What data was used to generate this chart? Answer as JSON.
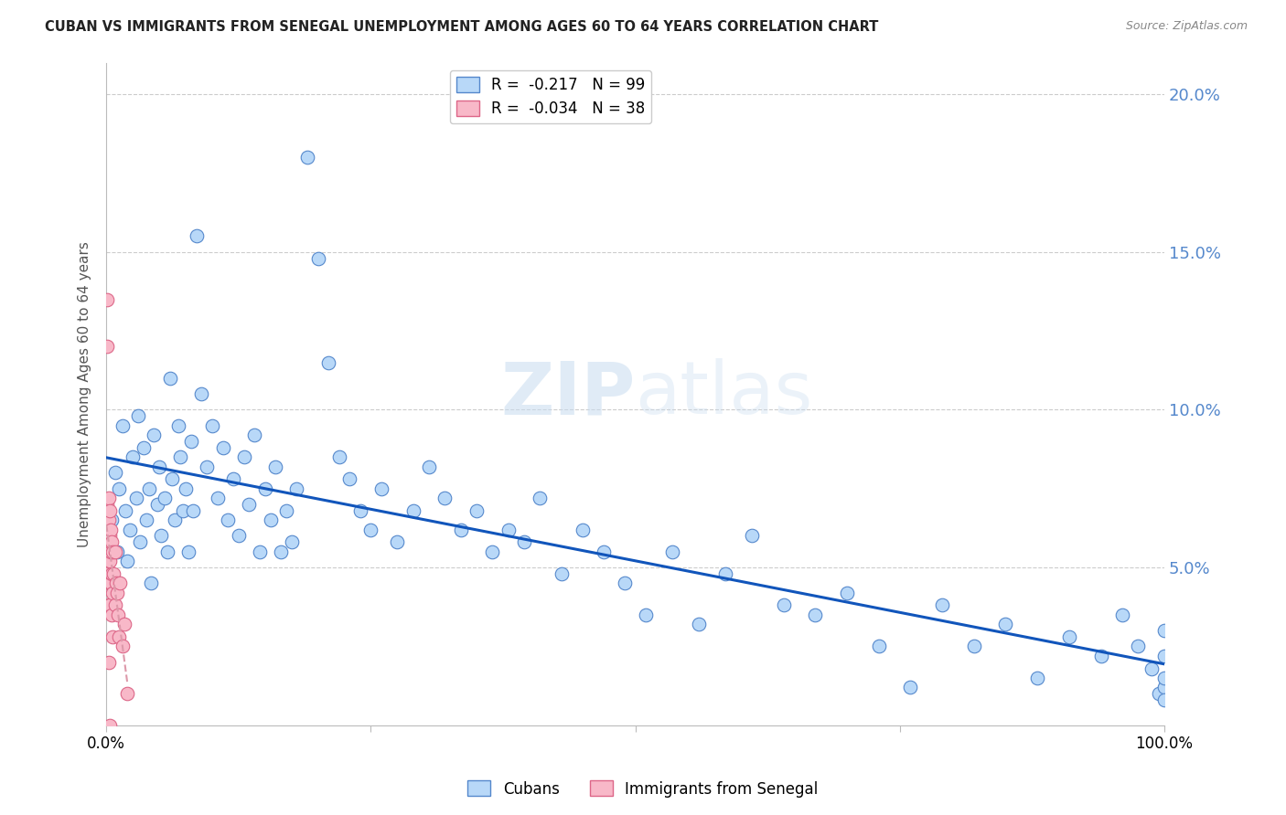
{
  "title": "CUBAN VS IMMIGRANTS FROM SENEGAL UNEMPLOYMENT AMONG AGES 60 TO 64 YEARS CORRELATION CHART",
  "source": "Source: ZipAtlas.com",
  "ylabel": "Unemployment Among Ages 60 to 64 years",
  "xlim": [
    0,
    1.0
  ],
  "ylim": [
    0,
    0.21
  ],
  "yticks": [
    0.05,
    0.1,
    0.15,
    0.2
  ],
  "ytick_labels": [
    "5.0%",
    "10.0%",
    "15.0%",
    "20.0%"
  ],
  "legend_entries": [
    {
      "label": "R =  -0.217   N = 99",
      "color": "#a8c8f0"
    },
    {
      "label": "R =  -0.034   N = 38",
      "color": "#f0a8b8"
    }
  ],
  "cubans_x": [
    0.005,
    0.008,
    0.01,
    0.012,
    0.015,
    0.018,
    0.02,
    0.022,
    0.025,
    0.028,
    0.03,
    0.032,
    0.035,
    0.038,
    0.04,
    0.042,
    0.045,
    0.048,
    0.05,
    0.052,
    0.055,
    0.058,
    0.06,
    0.062,
    0.065,
    0.068,
    0.07,
    0.072,
    0.075,
    0.078,
    0.08,
    0.082,
    0.085,
    0.09,
    0.095,
    0.1,
    0.105,
    0.11,
    0.115,
    0.12,
    0.125,
    0.13,
    0.135,
    0.14,
    0.145,
    0.15,
    0.155,
    0.16,
    0.165,
    0.17,
    0.175,
    0.18,
    0.19,
    0.2,
    0.21,
    0.22,
    0.23,
    0.24,
    0.25,
    0.26,
    0.275,
    0.29,
    0.305,
    0.32,
    0.335,
    0.35,
    0.365,
    0.38,
    0.395,
    0.41,
    0.43,
    0.45,
    0.47,
    0.49,
    0.51,
    0.535,
    0.56,
    0.585,
    0.61,
    0.64,
    0.67,
    0.7,
    0.73,
    0.76,
    0.79,
    0.82,
    0.85,
    0.88,
    0.91,
    0.94,
    0.96,
    0.975,
    0.988,
    0.995,
    1.0,
    1.0,
    1.0,
    1.0,
    1.0
  ],
  "cubans_y": [
    0.065,
    0.08,
    0.055,
    0.075,
    0.095,
    0.068,
    0.052,
    0.062,
    0.085,
    0.072,
    0.098,
    0.058,
    0.088,
    0.065,
    0.075,
    0.045,
    0.092,
    0.07,
    0.082,
    0.06,
    0.072,
    0.055,
    0.11,
    0.078,
    0.065,
    0.095,
    0.085,
    0.068,
    0.075,
    0.055,
    0.09,
    0.068,
    0.155,
    0.105,
    0.082,
    0.095,
    0.072,
    0.088,
    0.065,
    0.078,
    0.06,
    0.085,
    0.07,
    0.092,
    0.055,
    0.075,
    0.065,
    0.082,
    0.055,
    0.068,
    0.058,
    0.075,
    0.18,
    0.148,
    0.115,
    0.085,
    0.078,
    0.068,
    0.062,
    0.075,
    0.058,
    0.068,
    0.082,
    0.072,
    0.062,
    0.068,
    0.055,
    0.062,
    0.058,
    0.072,
    0.048,
    0.062,
    0.055,
    0.045,
    0.035,
    0.055,
    0.032,
    0.048,
    0.06,
    0.038,
    0.035,
    0.042,
    0.025,
    0.012,
    0.038,
    0.025,
    0.032,
    0.015,
    0.028,
    0.022,
    0.035,
    0.025,
    0.018,
    0.01,
    0.03,
    0.012,
    0.022,
    0.015,
    0.008
  ],
  "senegal_x": [
    0.001,
    0.001,
    0.001,
    0.001,
    0.001,
    0.002,
    0.002,
    0.002,
    0.002,
    0.002,
    0.002,
    0.002,
    0.003,
    0.003,
    0.003,
    0.003,
    0.003,
    0.003,
    0.004,
    0.004,
    0.004,
    0.005,
    0.005,
    0.005,
    0.006,
    0.006,
    0.006,
    0.007,
    0.008,
    0.008,
    0.009,
    0.01,
    0.011,
    0.012,
    0.013,
    0.015,
    0.017,
    0.02
  ],
  "senegal_y": [
    0.135,
    0.12,
    0.07,
    0.06,
    0.05,
    0.072,
    0.065,
    0.058,
    0.052,
    0.045,
    0.038,
    0.02,
    0.068,
    0.06,
    0.052,
    0.045,
    0.038,
    0.0,
    0.062,
    0.055,
    0.045,
    0.058,
    0.048,
    0.035,
    0.055,
    0.042,
    0.028,
    0.048,
    0.055,
    0.038,
    0.045,
    0.042,
    0.035,
    0.028,
    0.045,
    0.025,
    0.032,
    0.01
  ],
  "cubans_color": "#b8d8f8",
  "cubans_edge_color": "#5588cc",
  "senegal_color": "#f8b8c8",
  "senegal_edge_color": "#dd6688",
  "trend_cubans_color": "#1155bb",
  "trend_senegal_color": "#dd99aa",
  "watermark_zip": "ZIP",
  "watermark_atlas": "atlas",
  "background_color": "#ffffff",
  "grid_color": "#cccccc",
  "title_color": "#222222",
  "right_ytick_color": "#5588cc",
  "bottom_legend": [
    "Cubans",
    "Immigrants from Senegal"
  ]
}
